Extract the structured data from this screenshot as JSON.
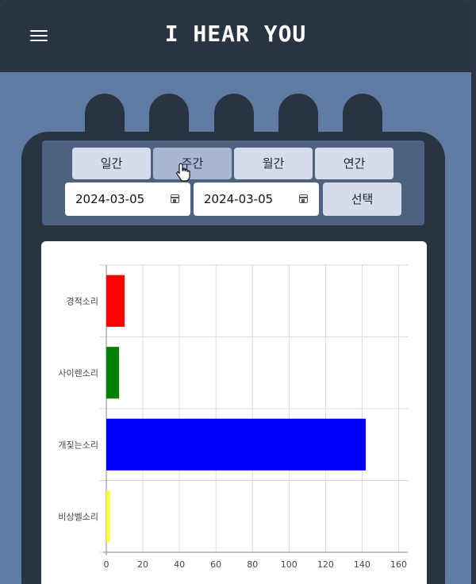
{
  "header": {
    "title": "I HEAR YOU"
  },
  "tabs": [
    {
      "label": "일간",
      "active": false
    },
    {
      "label": "주간",
      "active": true
    },
    {
      "label": "월간",
      "active": false
    },
    {
      "label": "연간",
      "active": false
    }
  ],
  "date_range": {
    "start": "2024-03-05",
    "end": "2024-03-05"
  },
  "select_label": "선택",
  "icons": {
    "menu": "hamburger-icon",
    "calendar": "calendar-icon",
    "cursor": "hand-pointer-icon"
  },
  "colors": {
    "header_bg": "#293443",
    "page_bg": "#5f7ba1",
    "active_tab": "#a8b8d2",
    "inactive_tab": "#d4dde9"
  },
  "chart_data": {
    "type": "bar",
    "orientation": "horizontal",
    "categories": [
      "경적소리",
      "사이렌소리",
      "개짖는소리",
      "비상벨소리"
    ],
    "values": [
      10,
      7,
      142,
      2
    ],
    "colors": [
      "#ff0000",
      "#008000",
      "#0000ff",
      "#ffff33"
    ],
    "xlim": [
      0,
      165
    ],
    "xticks": [
      0,
      20,
      40,
      60,
      80,
      100,
      120,
      140,
      160
    ],
    "grid": true,
    "title": "",
    "xlabel": "",
    "ylabel": ""
  }
}
